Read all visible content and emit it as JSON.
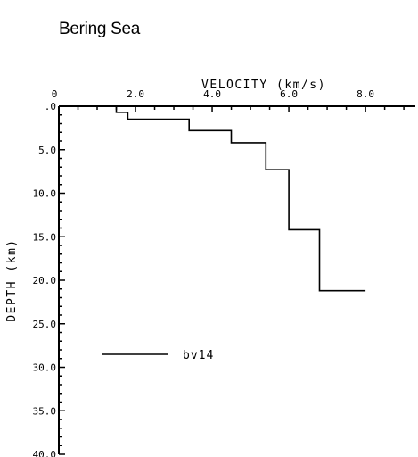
{
  "title": "Bering Sea",
  "chart_data": {
    "type": "line",
    "title": "Bering Sea",
    "xlabel": "VELOCITY (km/s)",
    "ylabel": "DEPTH (km)",
    "x_axis_position": "top",
    "y_axis_inverted": true,
    "xlim": [
      0,
      9.3
    ],
    "ylim": [
      0,
      40
    ],
    "x_ticks": [
      0,
      2,
      4,
      6,
      8
    ],
    "x_tick_labels": [
      ".0",
      "2.0",
      "4.0",
      "6.0",
      "8.0"
    ],
    "x_origin_label": "0",
    "y_ticks": [
      0,
      5,
      10,
      15,
      20,
      25,
      30,
      35,
      40
    ],
    "y_tick_labels": [
      ".0",
      "5.0",
      "10.0",
      "15.0",
      "20.0",
      "25.0",
      "30.0",
      "35.0",
      "40.0"
    ],
    "legend_position": "lower-left",
    "series": [
      {
        "name": "bv14",
        "type": "step",
        "velocity": [
          1.5,
          1.5,
          1.8,
          1.8,
          3.4,
          3.4,
          4.5,
          4.5,
          5.4,
          5.4,
          6.0,
          6.0,
          6.8,
          6.8,
          8.0
        ],
        "depth": [
          0.0,
          0.7,
          0.7,
          1.5,
          1.5,
          2.8,
          2.8,
          4.2,
          4.2,
          7.3,
          7.3,
          14.2,
          14.2,
          21.2,
          21.2
        ]
      }
    ]
  }
}
